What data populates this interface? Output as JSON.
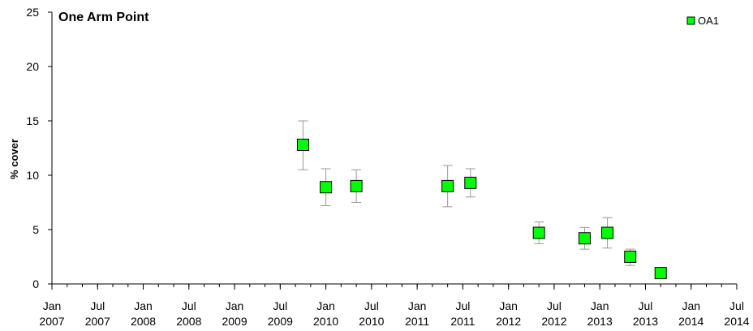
{
  "chart_data": {
    "type": "scatter",
    "title": "One Arm Point",
    "xlabel": "",
    "ylabel": "% cover",
    "ylim": [
      0,
      25
    ],
    "yticks": [
      0,
      5,
      10,
      15,
      20,
      25
    ],
    "xlim": [
      "2007-01",
      "2014-07"
    ],
    "xticks": [
      {
        "date": "2007-01",
        "month": "Jan",
        "year": "2007"
      },
      {
        "date": "2007-07",
        "month": "Jul",
        "year": "2007"
      },
      {
        "date": "2008-01",
        "month": "Jan",
        "year": "2008"
      },
      {
        "date": "2008-07",
        "month": "Jul",
        "year": "2008"
      },
      {
        "date": "2009-01",
        "month": "Jan",
        "year": "2009"
      },
      {
        "date": "2009-07",
        "month": "Jul",
        "year": "2009"
      },
      {
        "date": "2010-01",
        "month": "Jan",
        "year": "2010"
      },
      {
        "date": "2010-07",
        "month": "Jul",
        "year": "2010"
      },
      {
        "date": "2011-01",
        "month": "Jan",
        "year": "2011"
      },
      {
        "date": "2011-07",
        "month": "Jul",
        "year": "2011"
      },
      {
        "date": "2012-01",
        "month": "Jan",
        "year": "2012"
      },
      {
        "date": "2012-07",
        "month": "Jul",
        "year": "2012"
      },
      {
        "date": "2013-01",
        "month": "Jan",
        "year": "2013"
      },
      {
        "date": "2013-07",
        "month": "Jul",
        "year": "2013"
      },
      {
        "date": "2014-01",
        "month": "Jan",
        "year": "2014"
      },
      {
        "date": "2014-07",
        "month": "Jul",
        "year": "2014"
      }
    ],
    "legend": {
      "position": "top-right"
    },
    "grid": false,
    "series": [
      {
        "name": "OA1",
        "color": "#00ff00",
        "marker": "square",
        "errorbar_color": "#999999",
        "points": [
          {
            "x": "2009-10",
            "y": 12.8,
            "err_low": 10.5,
            "err_high": 15.0
          },
          {
            "x": "2010-01",
            "y": 8.9,
            "err_low": 7.2,
            "err_high": 10.6
          },
          {
            "x": "2010-05",
            "y": 9.0,
            "err_low": 7.5,
            "err_high": 10.5
          },
          {
            "x": "2011-05",
            "y": 9.0,
            "err_low": 7.1,
            "err_high": 10.9
          },
          {
            "x": "2011-08",
            "y": 9.3,
            "err_low": 8.0,
            "err_high": 10.6
          },
          {
            "x": "2012-05",
            "y": 4.7,
            "err_low": 3.7,
            "err_high": 5.7
          },
          {
            "x": "2012-11",
            "y": 4.2,
            "err_low": 3.2,
            "err_high": 5.2
          },
          {
            "x": "2013-02",
            "y": 4.7,
            "err_low": 3.3,
            "err_high": 6.1
          },
          {
            "x": "2013-05",
            "y": 2.5,
            "err_low": 1.7,
            "err_high": 3.2
          },
          {
            "x": "2013-09",
            "y": 1.0,
            "err_low": 0.8,
            "err_high": 1.2
          }
        ]
      }
    ]
  }
}
